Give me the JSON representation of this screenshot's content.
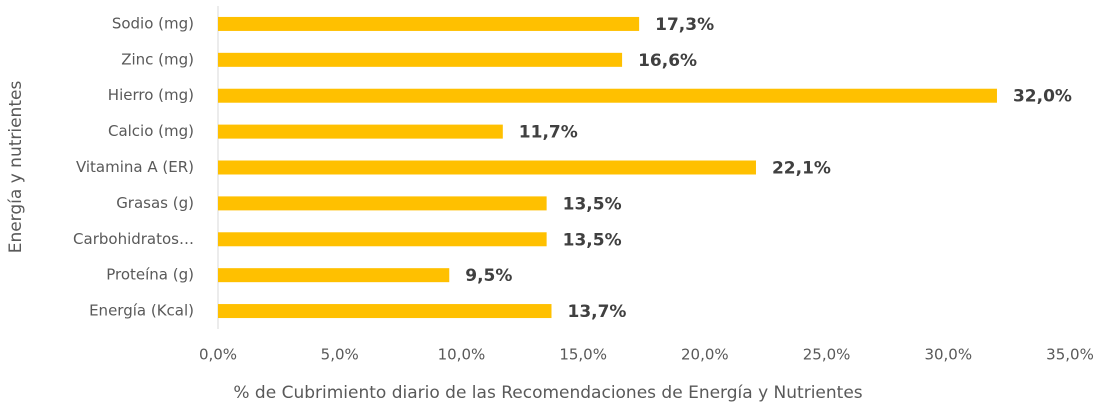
{
  "chart_data": {
    "type": "bar",
    "orientation": "horizontal",
    "xlabel": "% de Cubrimiento diario de las Recomendaciones de Energía y Nutrientes",
    "ylabel": "Energía y nutrientes",
    "categories": [
      "Sodio (mg)",
      "Zinc (mg)",
      "Hierro (mg)",
      "Calcio (mg)",
      "Vitamina A (ER)",
      "Grasas (g)",
      "Carbohidratos…",
      "Proteína (g)",
      "Energía (Kcal)"
    ],
    "values": [
      17.3,
      16.6,
      32.0,
      11.7,
      22.1,
      13.5,
      13.5,
      9.5,
      13.7
    ],
    "value_labels": [
      "17,3%",
      "16,6%",
      "32,0%",
      "11,7%",
      "22,1%",
      "13,5%",
      "13,5%",
      "9,5%",
      "13,7%"
    ],
    "color": "#FFC000",
    "xlim": [
      0,
      35
    ],
    "xticks": [
      {
        "value": 0,
        "label": "0,0%"
      },
      {
        "value": 5,
        "label": "5,0%"
      },
      {
        "value": 10,
        "label": "10,0%"
      },
      {
        "value": 15,
        "label": "15,0%"
      },
      {
        "value": 20,
        "label": "20,0%"
      },
      {
        "value": 25,
        "label": "25,0%"
      },
      {
        "value": 30,
        "label": "30,0%"
      },
      {
        "value": 35,
        "label": "35,0%"
      }
    ],
    "grid": false
  }
}
